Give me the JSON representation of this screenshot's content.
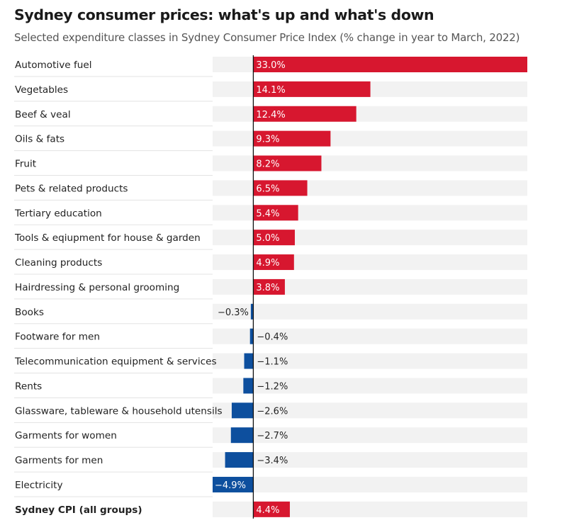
{
  "title": "Sydney consumer prices: what's up and what's down",
  "subtitle": "Selected expenditure classes in Sydney Consumer Price Index (% change in year to March, 2022)",
  "colors": {
    "positive": "#d7172f",
    "negative": "#0d4f9e",
    "track": "#f2f2f2",
    "separator": "#e3e3e3",
    "axis": "#111111"
  },
  "chart_data": {
    "type": "bar",
    "orientation": "horizontal",
    "categories": [
      "Automotive fuel",
      "Vegetables",
      "Beef & veal",
      "Oils & fats",
      "Fruit",
      "Pets & related products",
      "Tertiary education",
      "Tools & eqiupment for house & garden",
      "Cleaning products",
      "Hairdressing & personal grooming",
      "Books",
      "Footware for men",
      "Telecommunication equipment & services",
      "Rents",
      "Glassware, tableware & household utensils",
      "Garments for women",
      "Garments for men",
      "Electricity",
      "Sydney CPI (all groups)"
    ],
    "values": [
      33.0,
      14.1,
      12.4,
      9.3,
      8.2,
      6.5,
      5.4,
      5.0,
      4.9,
      3.8,
      -0.3,
      -0.4,
      -1.1,
      -1.2,
      -2.6,
      -2.7,
      -3.4,
      -4.9,
      4.4
    ],
    "labels": [
      "33.0%",
      "14.1%",
      "12.4%",
      "9.3%",
      "8.2%",
      "6.5%",
      "5.4%",
      "5.0%",
      "4.9%",
      "3.8%",
      "−0.3%",
      "−0.4%",
      "−1.1%",
      "−1.2%",
      "−2.6%",
      "−2.7%",
      "−3.4%",
      "−4.9%",
      "4.4%"
    ],
    "bold_categories": [
      "Sydney CPI (all groups)"
    ],
    "xlim": [
      -4.9,
      33.0
    ],
    "title": "Sydney consumer prices: what's up and what's down",
    "xlabel": "",
    "ylabel": "",
    "grid": false
  }
}
